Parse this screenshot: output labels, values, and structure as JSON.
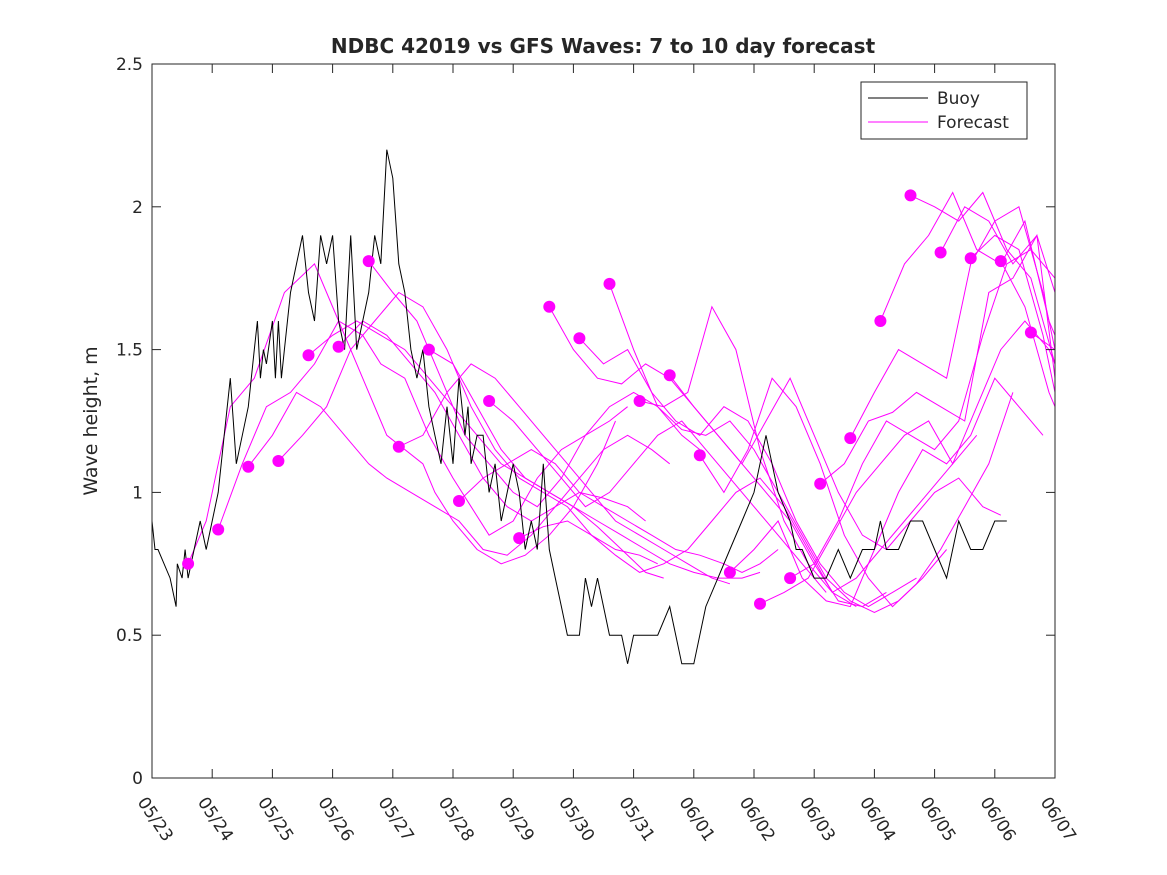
{
  "chart_data": {
    "type": "line",
    "title": "NDBC 42019 vs GFS Waves: 7 to 10 day forecast",
    "xlabel": "",
    "ylabel": "Wave height, m",
    "x_ticks": [
      "05/23",
      "05/24",
      "05/25",
      "05/26",
      "05/27",
      "05/28",
      "05/29",
      "05/30",
      "05/31",
      "06/01",
      "06/02",
      "06/03",
      "06/04",
      "06/05",
      "06/06",
      "06/07"
    ],
    "xlim": [
      0,
      15
    ],
    "ylim": [
      0,
      2.5
    ],
    "y_ticks": [
      "0",
      "0.5",
      "1",
      "1.5",
      "2",
      "2.5"
    ],
    "grid": false,
    "legend": {
      "placement": "top-right",
      "entries": [
        "Buoy",
        "Forecast"
      ]
    },
    "colors": {
      "buoy": "#000000",
      "forecast": "#ff00ff"
    },
    "buoy": {
      "name": "Buoy",
      "x": [
        0.0,
        0.05,
        0.1,
        0.3,
        0.4,
        0.42,
        0.5,
        0.55,
        0.6,
        0.7,
        0.8,
        0.9,
        1.0,
        1.1,
        1.2,
        1.3,
        1.4,
        1.5,
        1.6,
        1.7,
        1.75,
        1.8,
        1.85,
        1.9,
        2.0,
        2.05,
        2.1,
        2.15,
        2.2,
        2.3,
        2.4,
        2.5,
        2.6,
        2.7,
        2.8,
        2.9,
        3.0,
        3.1,
        3.2,
        3.3,
        3.4,
        3.5,
        3.6,
        3.7,
        3.8,
        3.9,
        4.0,
        4.1,
        4.2,
        4.3,
        4.4,
        4.5,
        4.6,
        4.7,
        4.8,
        4.9,
        5.0,
        5.1,
        5.15,
        5.2,
        5.25,
        5.3,
        5.4,
        5.5,
        5.6,
        5.7,
        5.8,
        5.9,
        6.0,
        6.1,
        6.2,
        6.3,
        6.4,
        6.5,
        6.6,
        6.7,
        6.8,
        6.9,
        7.0,
        7.1,
        7.2,
        7.3,
        7.4,
        7.5,
        7.6,
        7.7,
        7.8,
        7.9,
        8.0,
        8.2,
        8.4,
        8.6,
        8.8,
        9.0,
        9.2,
        9.4,
        9.6,
        9.8,
        10.0,
        10.1,
        10.2,
        10.4,
        10.6,
        10.7,
        10.8,
        11.0,
        11.2,
        11.4,
        11.6,
        11.8,
        12.0,
        12.1,
        12.2,
        12.4,
        12.6,
        12.8,
        13.0,
        13.2,
        13.4,
        13.6,
        13.8,
        14.0,
        14.1,
        14.2
      ],
      "y": [
        0.9,
        0.8,
        0.8,
        0.7,
        0.6,
        0.75,
        0.7,
        0.8,
        0.7,
        0.8,
        0.9,
        0.8,
        0.9,
        1.0,
        1.2,
        1.4,
        1.1,
        1.2,
        1.3,
        1.5,
        1.6,
        1.4,
        1.5,
        1.45,
        1.6,
        1.4,
        1.6,
        1.4,
        1.5,
        1.7,
        1.8,
        1.9,
        1.7,
        1.6,
        1.9,
        1.8,
        1.9,
        1.6,
        1.5,
        1.9,
        1.5,
        1.6,
        1.7,
        1.9,
        1.8,
        2.2,
        2.1,
        1.8,
        1.7,
        1.5,
        1.4,
        1.5,
        1.3,
        1.2,
        1.1,
        1.3,
        1.1,
        1.4,
        1.3,
        1.2,
        1.3,
        1.1,
        1.2,
        1.2,
        1.0,
        1.1,
        0.9,
        1.0,
        1.1,
        1.0,
        0.8,
        0.9,
        0.8,
        1.1,
        0.8,
        0.7,
        0.6,
        0.5,
        0.5,
        0.5,
        0.7,
        0.6,
        0.7,
        0.6,
        0.5,
        0.5,
        0.5,
        0.4,
        0.5,
        0.5,
        0.5,
        0.6,
        0.4,
        0.4,
        0.6,
        0.7,
        0.8,
        0.9,
        1.0,
        1.1,
        1.2,
        1.0,
        0.9,
        0.8,
        0.8,
        0.7,
        0.7,
        0.8,
        0.7,
        0.8,
        0.8,
        0.9,
        0.8,
        0.8,
        0.9,
        0.9,
        0.8,
        0.7,
        0.9,
        0.8,
        0.8,
        0.9,
        0.9,
        0.9
      ]
    },
    "forecast_series": [
      {
        "x": [
          0.6,
          0.9,
          1.3,
          1.7,
          2.2,
          2.7,
          3.1,
          3.5,
          3.9,
          4.5,
          4.7,
          5.0,
          5.4,
          5.8,
          6.2,
          6.6,
          7.0,
          7.4,
          7.7
        ],
        "y": [
          0.75,
          0.9,
          1.3,
          1.4,
          1.7,
          1.8,
          1.6,
          1.4,
          1.2,
          1.1,
          1.0,
          0.9,
          0.8,
          0.75,
          0.78,
          0.85,
          0.95,
          1.1,
          1.25
        ]
      },
      {
        "x": [
          1.1,
          1.5,
          1.9,
          2.3,
          2.7,
          3.1,
          3.5,
          3.8,
          4.2,
          4.6,
          5.0,
          5.3,
          5.6,
          6.0,
          6.4,
          6.8,
          7.2,
          7.6,
          7.9
        ],
        "y": [
          0.87,
          1.1,
          1.3,
          1.35,
          1.45,
          1.6,
          1.55,
          1.45,
          1.4,
          1.2,
          1.05,
          0.95,
          0.85,
          0.9,
          1.05,
          1.15,
          1.2,
          1.25,
          1.3
        ]
      },
      {
        "x": [
          1.6,
          2.0,
          2.4,
          2.8,
          3.2,
          3.6,
          3.9,
          4.3,
          4.7,
          5.1,
          5.5,
          5.9,
          6.3,
          6.7,
          7.1,
          7.5,
          7.9,
          8.2
        ],
        "y": [
          1.09,
          1.2,
          1.35,
          1.3,
          1.2,
          1.1,
          1.05,
          1.0,
          0.95,
          0.9,
          0.8,
          0.78,
          0.85,
          0.95,
          1.0,
          0.98,
          0.95,
          0.9
        ]
      },
      {
        "x": [
          2.1,
          2.5,
          2.9,
          3.3,
          3.7,
          4.1,
          4.5,
          4.9,
          5.3,
          5.7,
          6.1,
          6.5,
          6.9,
          7.3,
          7.7,
          8.1,
          8.4
        ],
        "y": [
          1.11,
          1.2,
          1.3,
          1.5,
          1.6,
          1.7,
          1.65,
          1.5,
          1.3,
          1.15,
          1.05,
          1.0,
          0.95,
          0.85,
          0.8,
          0.78,
          0.75
        ]
      },
      {
        "x": [
          2.6,
          3.0,
          3.4,
          3.8,
          4.2,
          4.6,
          5.0,
          5.4,
          5.8,
          6.2,
          6.6,
          7.0,
          7.4,
          7.8,
          8.2,
          8.5
        ],
        "y": [
          1.48,
          1.55,
          1.6,
          1.55,
          1.5,
          1.4,
          1.3,
          1.2,
          1.1,
          1.05,
          1.0,
          0.95,
          0.88,
          0.8,
          0.72,
          0.7
        ]
      },
      {
        "x": [
          3.1,
          3.5,
          3.9,
          4.3,
          4.7,
          5.1,
          5.5,
          5.9,
          6.3,
          6.7,
          7.1,
          7.5,
          7.9,
          8.3,
          8.6
        ],
        "y": [
          1.51,
          1.6,
          1.55,
          1.45,
          1.35,
          1.2,
          1.05,
          0.95,
          0.9,
          0.95,
          1.05,
          1.15,
          1.2,
          1.15,
          1.1
        ]
      },
      {
        "x": [
          3.6,
          4.0,
          4.4,
          4.8,
          5.2,
          5.6,
          6.0,
          6.4,
          6.8,
          7.2,
          7.6,
          8.0,
          8.4,
          8.8,
          9.1
        ],
        "y": [
          1.81,
          1.7,
          1.6,
          1.4,
          1.2,
          1.1,
          1.0,
          0.95,
          1.05,
          1.2,
          1.3,
          1.35,
          1.3,
          1.2,
          1.15
        ]
      },
      {
        "x": [
          4.1,
          4.5,
          4.9,
          5.3,
          5.7,
          6.1,
          6.5,
          6.9,
          7.3,
          7.7,
          8.1,
          8.5,
          8.9,
          9.3,
          9.6
        ],
        "y": [
          1.16,
          1.2,
          1.35,
          1.45,
          1.4,
          1.3,
          1.2,
          1.1,
          1.0,
          0.9,
          0.85,
          0.8,
          0.75,
          0.7,
          0.68
        ]
      },
      {
        "x": [
          4.6,
          5.0,
          5.4,
          5.8,
          6.2,
          6.6,
          7.0,
          7.4,
          7.8,
          8.2,
          8.6,
          9.0,
          9.4,
          9.8,
          10.1
        ],
        "y": [
          1.5,
          1.45,
          1.3,
          1.15,
          1.05,
          1.0,
          0.95,
          0.9,
          0.85,
          0.8,
          0.75,
          0.72,
          0.7,
          0.7,
          0.72
        ]
      },
      {
        "x": [
          5.1,
          5.5,
          5.9,
          6.3,
          6.7,
          7.1,
          7.5,
          7.9,
          8.3,
          8.7,
          9.1,
          9.5,
          9.8,
          10.1,
          10.4
        ],
        "y": [
          0.97,
          1.05,
          1.1,
          1.15,
          1.1,
          1.0,
          0.95,
          0.9,
          0.85,
          0.8,
          0.78,
          0.75,
          0.72,
          0.75,
          0.8
        ]
      },
      {
        "x": [
          5.6,
          6.0,
          6.4,
          6.8,
          7.2,
          7.6,
          8.0,
          8.4,
          8.8,
          9.2,
          9.6,
          10.0,
          10.4,
          10.8,
          11.2
        ],
        "y": [
          1.32,
          1.25,
          1.15,
          1.05,
          0.95,
          1.0,
          1.1,
          1.2,
          1.25,
          1.15,
          1.05,
          0.95,
          0.85,
          0.75,
          0.65
        ]
      },
      {
        "x": [
          6.1,
          6.5,
          6.9,
          7.3,
          7.7,
          8.1,
          8.5,
          8.9,
          9.3,
          9.7,
          10.1,
          10.5,
          10.9,
          11.3,
          11.7
        ],
        "y": [
          0.84,
          0.88,
          0.9,
          0.85,
          0.78,
          0.72,
          0.75,
          0.8,
          0.9,
          1.0,
          1.05,
          0.95,
          0.8,
          0.65,
          0.6
        ]
      },
      {
        "x": [
          6.6,
          7.0,
          7.4,
          7.8,
          8.2,
          8.6,
          9.0,
          9.4,
          9.8,
          10.2,
          10.6,
          11.0,
          11.4,
          11.8,
          12.2
        ],
        "y": [
          1.65,
          1.5,
          1.4,
          1.38,
          1.45,
          1.4,
          1.3,
          1.2,
          1.1,
          1.0,
          0.9,
          0.75,
          0.62,
          0.6,
          0.65
        ]
      },
      {
        "x": [
          7.1,
          7.5,
          7.9,
          8.3,
          8.7,
          9.1,
          9.5,
          9.9,
          10.3,
          10.7,
          11.1,
          11.5,
          11.9,
          12.3,
          12.7
        ],
        "y": [
          1.54,
          1.45,
          1.5,
          1.35,
          1.25,
          1.2,
          1.3,
          1.25,
          1.1,
          0.9,
          0.75,
          0.65,
          0.6,
          0.65,
          0.7
        ]
      },
      {
        "x": [
          7.6,
          8.0,
          8.4,
          8.8,
          9.2,
          9.6,
          10.0,
          10.4,
          10.8,
          11.2,
          11.6,
          12.0,
          12.4,
          12.8,
          13.2
        ],
        "y": [
          1.73,
          1.5,
          1.3,
          1.22,
          1.2,
          1.25,
          1.15,
          1.0,
          0.85,
          0.7,
          0.62,
          0.58,
          0.62,
          0.7,
          0.8
        ]
      },
      {
        "x": [
          8.1,
          8.5,
          8.9,
          9.3,
          9.7,
          10.1,
          10.5,
          10.9,
          11.3,
          11.7,
          12.1,
          12.5,
          12.9,
          13.3,
          13.7
        ],
        "y": [
          1.32,
          1.3,
          1.35,
          1.65,
          1.5,
          1.15,
          0.9,
          0.75,
          0.65,
          0.7,
          0.8,
          0.9,
          1.0,
          1.1,
          1.2
        ]
      },
      {
        "x": [
          8.6,
          9.0,
          9.4,
          9.8,
          10.2,
          10.6,
          11.0,
          11.4,
          11.8,
          12.2,
          12.6,
          13.0,
          13.4,
          13.8,
          14.1
        ],
        "y": [
          1.41,
          1.3,
          1.2,
          1.1,
          1.25,
          1.4,
          1.2,
          1.0,
          0.85,
          0.8,
          0.9,
          1.0,
          1.05,
          0.95,
          0.92
        ]
      },
      {
        "x": [
          9.1,
          9.5,
          9.9,
          10.3,
          10.7,
          11.1,
          11.5,
          11.9,
          12.3,
          12.7,
          13.1,
          13.5,
          13.9,
          14.3
        ],
        "y": [
          1.13,
          1.0,
          1.15,
          1.4,
          1.3,
          1.1,
          0.85,
          0.7,
          0.6,
          0.68,
          0.8,
          0.95,
          1.1,
          1.35
        ]
      },
      {
        "x": [
          9.6,
          10.0,
          10.4,
          10.8,
          11.2,
          11.6,
          12.0,
          12.4,
          12.8,
          13.2,
          13.6,
          14.0,
          14.4,
          14.8
        ],
        "y": [
          0.72,
          0.8,
          0.9,
          0.7,
          0.62,
          0.6,
          0.8,
          1.0,
          1.15,
          1.1,
          1.2,
          1.4,
          1.3,
          1.2
        ]
      },
      {
        "x": [
          10.1,
          10.5,
          10.9,
          11.3,
          11.7,
          12.1,
          12.5,
          12.9,
          13.3,
          13.7,
          14.1,
          14.5,
          14.9,
          15.0
        ],
        "y": [
          0.61,
          0.65,
          0.7,
          0.85,
          1.0,
          1.1,
          1.2,
          1.25,
          1.1,
          1.3,
          1.5,
          1.6,
          1.5,
          1.45
        ]
      },
      {
        "x": [
          10.6,
          11.0,
          11.4,
          11.8,
          12.2,
          12.6,
          13.0,
          13.4,
          13.8,
          14.2,
          14.6,
          15.0
        ],
        "y": [
          0.7,
          0.75,
          0.9,
          1.1,
          1.25,
          1.2,
          1.15,
          1.25,
          1.55,
          1.8,
          1.85,
          1.75
        ]
      },
      {
        "x": [
          11.1,
          11.5,
          11.9,
          12.3,
          12.7,
          13.1,
          13.5,
          13.9,
          14.3,
          14.7,
          15.0
        ],
        "y": [
          1.03,
          1.1,
          1.25,
          1.28,
          1.35,
          1.3,
          1.25,
          1.7,
          1.75,
          1.9,
          1.7
        ]
      },
      {
        "x": [
          11.6,
          12.0,
          12.4,
          12.8,
          13.2,
          13.6,
          14.0,
          14.4,
          14.8,
          15.0
        ],
        "y": [
          1.19,
          1.35,
          1.5,
          1.45,
          1.4,
          1.8,
          1.95,
          2.0,
          1.7,
          1.5
        ]
      },
      {
        "x": [
          12.1,
          12.5,
          12.9,
          13.3,
          13.7,
          14.1,
          14.5,
          14.9,
          15.0
        ],
        "y": [
          1.6,
          1.8,
          1.9,
          2.05,
          1.85,
          1.8,
          1.95,
          1.6,
          1.55
        ]
      },
      {
        "x": [
          12.6,
          13.0,
          13.4,
          13.8,
          14.2,
          14.6,
          15.0
        ],
        "y": [
          2.04,
          2.0,
          1.95,
          2.05,
          1.85,
          1.75,
          1.45
        ]
      },
      {
        "x": [
          13.1,
          13.5,
          13.9,
          14.3,
          14.7,
          15.0
        ],
        "y": [
          1.84,
          2.0,
          1.95,
          1.8,
          1.9,
          1.4
        ]
      },
      {
        "x": [
          13.6,
          14.0,
          14.4,
          14.8,
          15.0
        ],
        "y": [
          1.82,
          1.9,
          1.85,
          1.55,
          1.35
        ]
      },
      {
        "x": [
          14.1,
          14.5,
          14.9,
          15.0
        ],
        "y": [
          1.81,
          1.65,
          1.35,
          1.3
        ]
      },
      {
        "x": [
          14.6,
          15.0
        ],
        "y": [
          1.56,
          1.5
        ]
      }
    ],
    "forecast_markers": {
      "x": [
        0.6,
        1.1,
        1.6,
        2.1,
        2.6,
        3.1,
        3.6,
        4.1,
        4.6,
        5.1,
        5.6,
        6.1,
        6.6,
        7.1,
        7.6,
        8.1,
        8.6,
        9.1,
        9.6,
        10.1,
        10.6,
        11.1,
        11.6,
        12.1,
        12.6,
        13.1,
        13.6,
        14.1,
        14.6
      ],
      "y": [
        0.75,
        0.87,
        1.09,
        1.11,
        1.48,
        1.51,
        1.81,
        1.16,
        1.5,
        0.97,
        1.32,
        0.84,
        1.65,
        1.54,
        1.73,
        1.32,
        1.41,
        1.13,
        0.72,
        0.61,
        0.7,
        1.03,
        1.19,
        1.6,
        2.04,
        1.84,
        1.82,
        1.81,
        1.56
      ]
    }
  }
}
